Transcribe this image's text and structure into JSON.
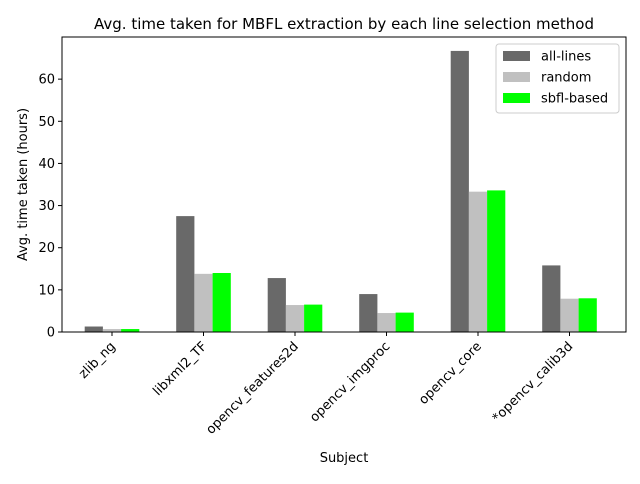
{
  "chart_data": {
    "type": "bar",
    "title": "Avg. time taken for MBFL extraction by each line selection method",
    "xlabel": "Subject",
    "ylabel": "Avg. time taken (hours)",
    "categories": [
      "zlib_ng",
      "libxml2_TF",
      "opencv_features2d",
      "opencv_imgproc",
      "opencv_core",
      "*opencv_calib3d"
    ],
    "series": [
      {
        "name": "all-lines",
        "color": "#696969",
        "values": [
          1.3,
          27.5,
          12.8,
          9.0,
          66.7,
          15.8
        ]
      },
      {
        "name": "random",
        "color": "#c0c0c0",
        "values": [
          0.7,
          13.8,
          6.4,
          4.5,
          33.3,
          7.9
        ]
      },
      {
        "name": "sbfl-based",
        "color": "#00ff00",
        "values": [
          0.7,
          14.0,
          6.5,
          4.6,
          33.6,
          8.0
        ]
      }
    ],
    "ylim": [
      0,
      70
    ],
    "yticks": [
      0,
      10,
      20,
      30,
      40,
      50,
      60
    ],
    "grid": false,
    "legend_position": "top-right"
  }
}
